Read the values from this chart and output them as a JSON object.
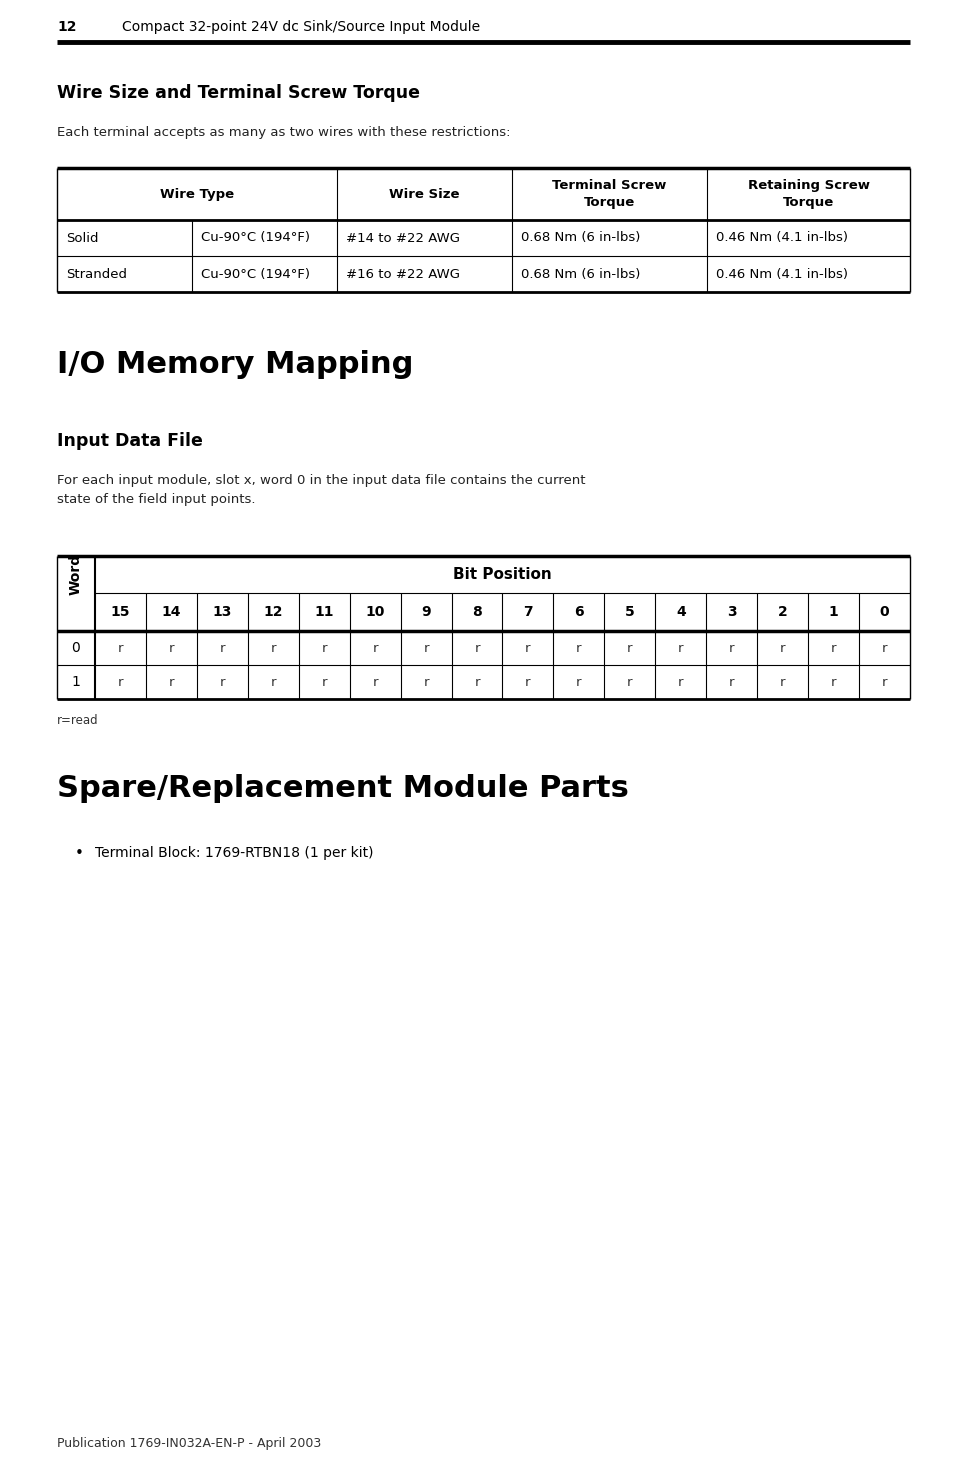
{
  "page_num": "12",
  "page_title": "Compact 32-point 24V dc Sink/Source Input Module",
  "section1_title": "Wire Size and Terminal Screw Torque",
  "section1_intro": "Each terminal accepts as many as two wires with these restrictions:",
  "wire_table_rows": [
    [
      "Solid",
      "Cu-90°C (194°F)",
      "#14 to #22 AWG",
      "0.68 Nm (6 in-lbs)",
      "0.46 Nm (4.1 in-lbs)"
    ],
    [
      "Stranded",
      "Cu-90°C (194°F)",
      "#16 to #22 AWG",
      "0.68 Nm (6 in-lbs)",
      "0.46 Nm (4.1 in-lbs)"
    ]
  ],
  "section2_title": "I/O Memory Mapping",
  "section3_title": "Input Data File",
  "section3_intro": "For each input module, slot x, word 0 in the input data file contains the current\nstate of the field input points.",
  "bit_table_col_header": "Bit Position",
  "bit_table_word_label": "Word",
  "bit_positions": [
    "15",
    "14",
    "13",
    "12",
    "11",
    "10",
    "9",
    "8",
    "7",
    "6",
    "5",
    "4",
    "3",
    "2",
    "1",
    "0"
  ],
  "bit_table_rows": [
    [
      "0",
      "r",
      "r",
      "r",
      "r",
      "r",
      "r",
      "r",
      "r",
      "r",
      "r",
      "r",
      "r",
      "r",
      "r",
      "r",
      "r"
    ],
    [
      "1",
      "r",
      "r",
      "r",
      "r",
      "r",
      "r",
      "r",
      "r",
      "r",
      "r",
      "r",
      "r",
      "r",
      "r",
      "r",
      "r"
    ]
  ],
  "bit_legend": "r=read",
  "section4_title": "Spare/Replacement Module Parts",
  "section4_bullet": "Terminal Block: 1769-RTBN18 (1 per kit)",
  "footer": "Publication 1769-IN032A-EN-P - April 2003",
  "bg_color": "#ffffff"
}
